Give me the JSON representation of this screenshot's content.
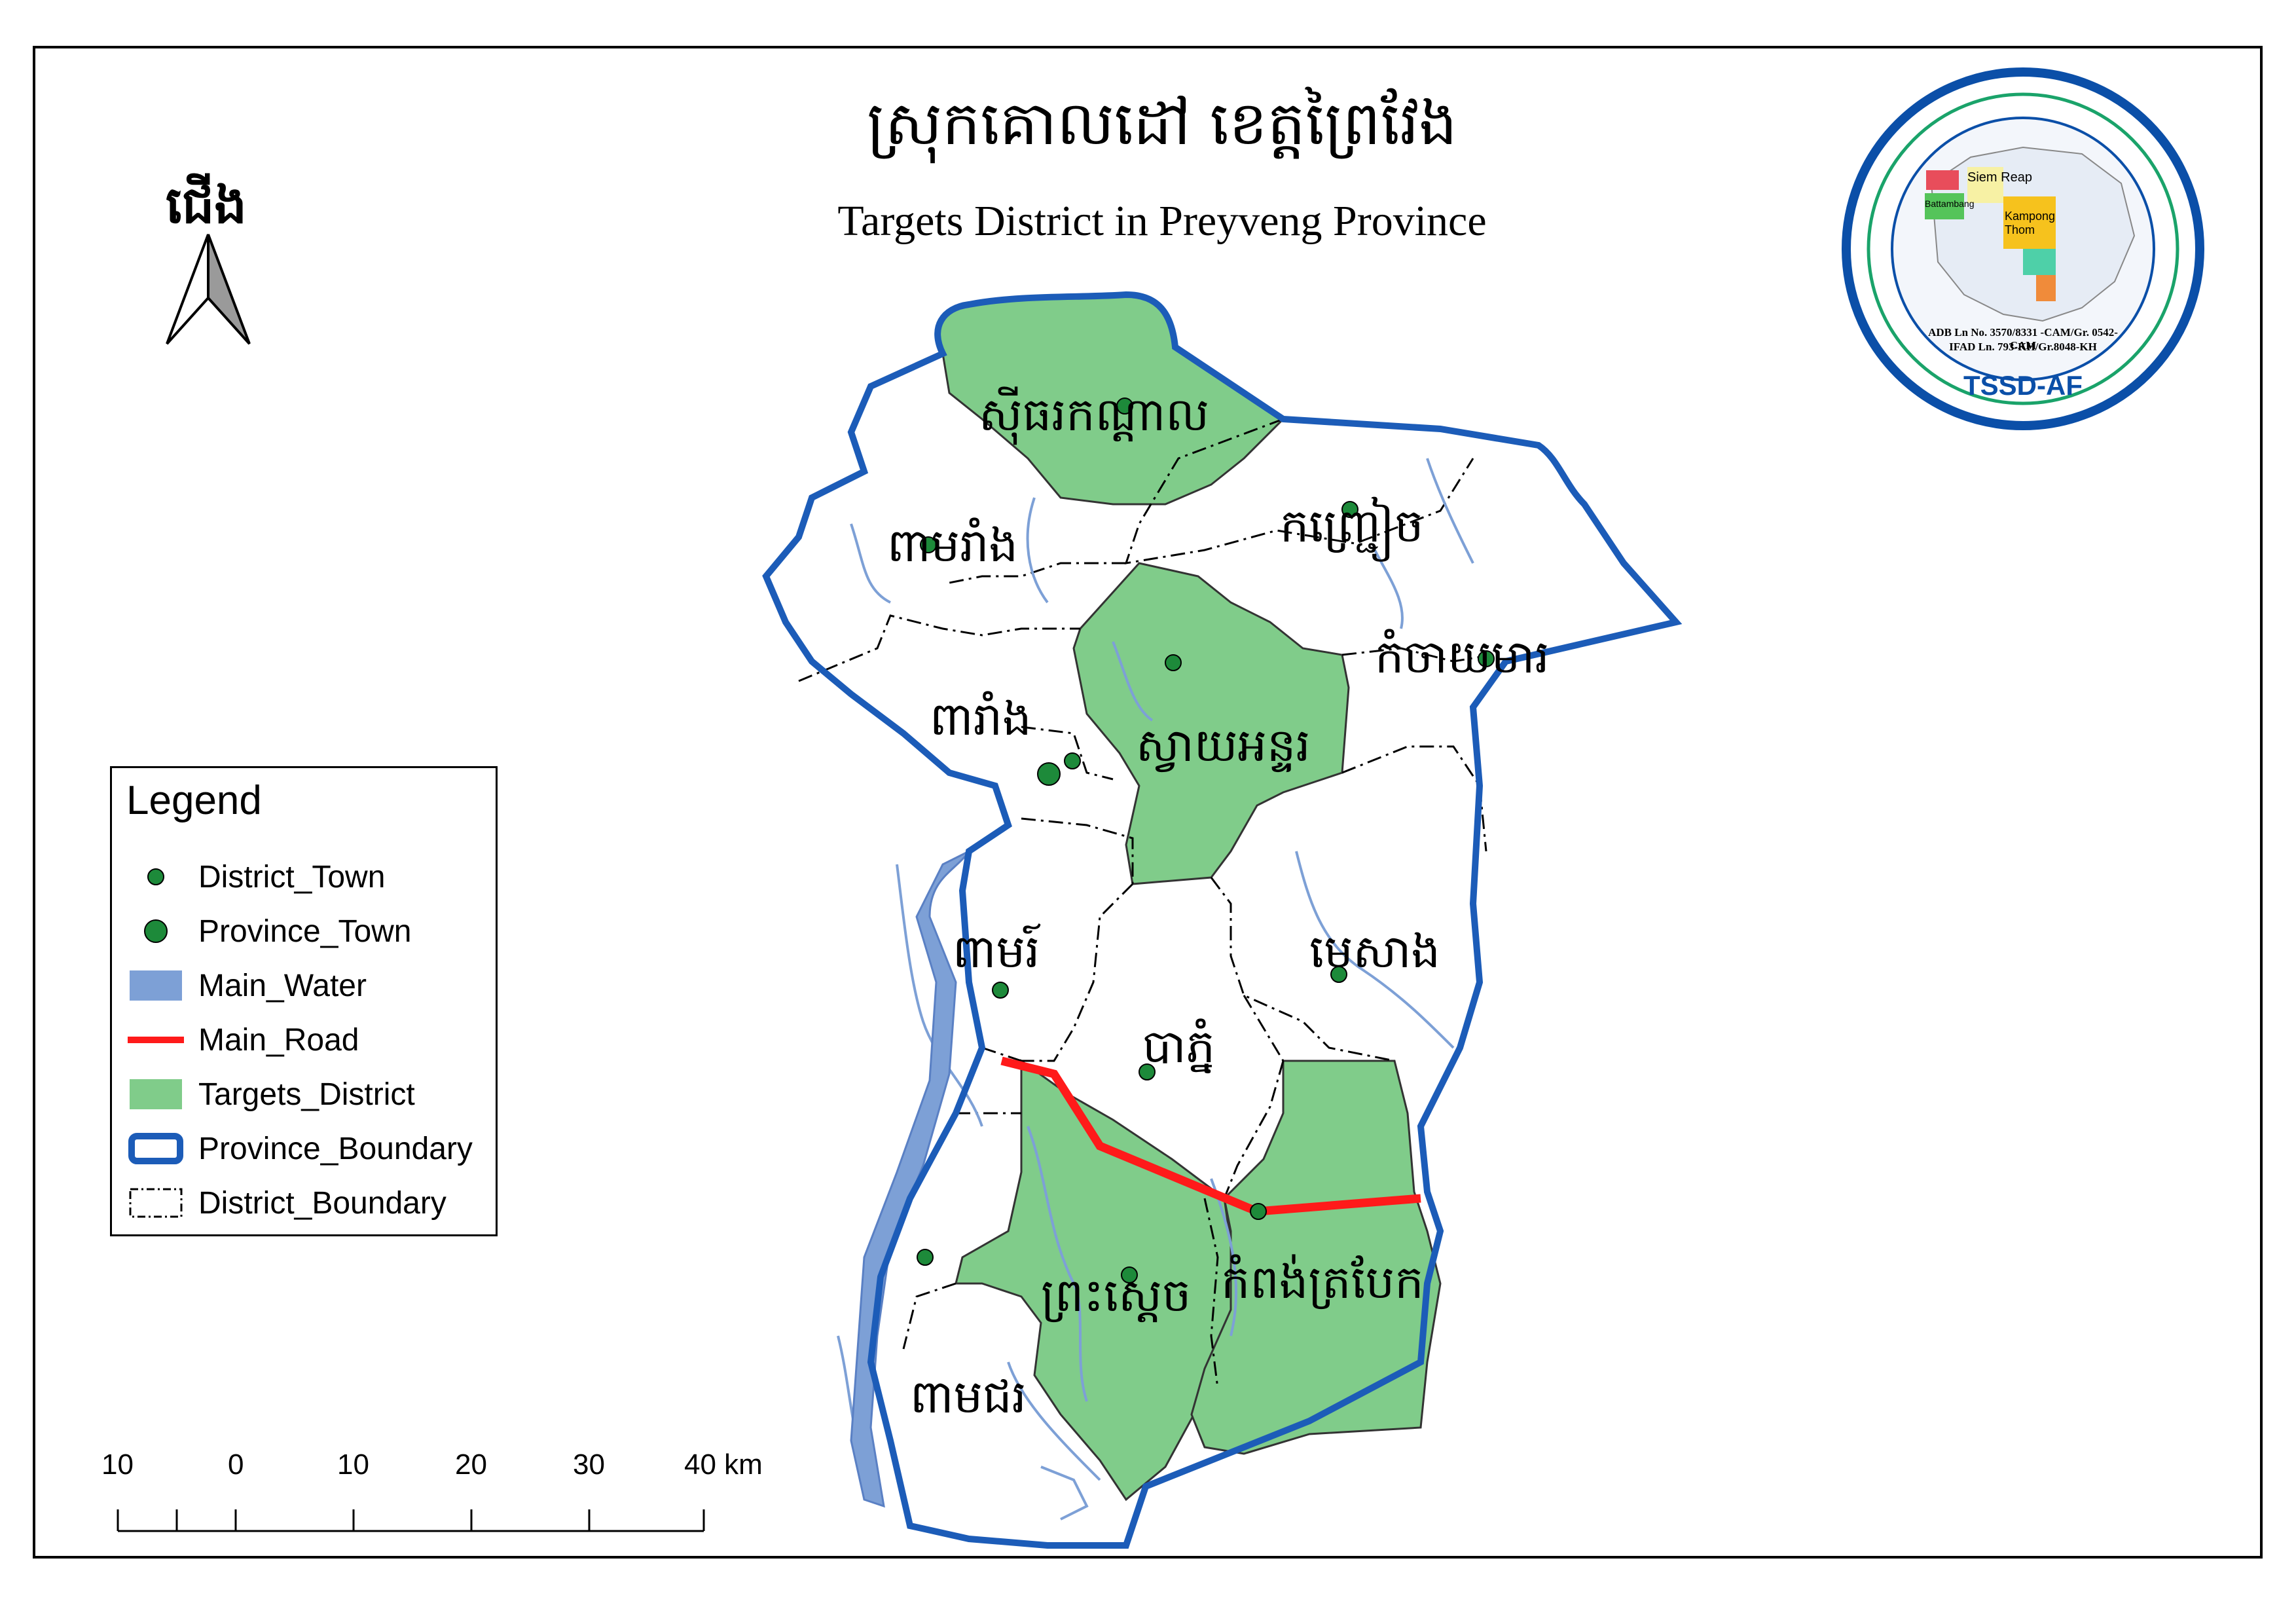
{
  "title": {
    "khmer": "ស្រុកគោលដៅ ខេត្តព្រៃវែង",
    "english": "Targets District in Preyveng Province"
  },
  "north_arrow": {
    "label": "ជើង",
    "icon": "north-arrow-icon"
  },
  "districts": [
    {
      "id": "sithor-kandal",
      "name": "ស៊ីធរកណ្ដាល",
      "target": true
    },
    {
      "id": "kamchay-mear",
      "name": "កំចាយមារ",
      "target": false
    },
    {
      "id": "kanhchriech",
      "name": "កញ្ជ្រៀច",
      "target": false
    },
    {
      "id": "pea-reang",
      "name": "ពាមរាំង",
      "target": false
    },
    {
      "id": "svay-antor",
      "name": "ស្វាយអន្ទរ",
      "target": true
    },
    {
      "id": "peareang",
      "name": "ពារាំង",
      "target": false
    },
    {
      "id": "mesang",
      "name": "មេសាង",
      "target": false
    },
    {
      "id": "pea-ro",
      "name": "ពាមរ៍",
      "target": false
    },
    {
      "id": "ba-phnum",
      "name": "បាភ្នំ",
      "target": false
    },
    {
      "id": "preah-sdach",
      "name": "ព្រះស្ដេច",
      "target": true
    },
    {
      "id": "kampong-trabaek",
      "name": "កំពង់ត្របែក",
      "target": true
    },
    {
      "id": "pea-chor",
      "name": "ពាមជរ",
      "target": false
    }
  ],
  "legend": {
    "title": "Legend",
    "items": [
      {
        "key": "district-town",
        "label": "District_Town"
      },
      {
        "key": "province-town",
        "label": "Province_Town"
      },
      {
        "key": "main-water",
        "label": "Main_Water"
      },
      {
        "key": "main-road",
        "label": "Main_Road"
      },
      {
        "key": "targets-district",
        "label": "Targets_District"
      },
      {
        "key": "province-boundary",
        "label": "Province_Boundary"
      },
      {
        "key": "district-boundary",
        "label": "District_Boundary"
      }
    ]
  },
  "scale_bar": {
    "labels": [
      "10",
      "0",
      "10",
      "20",
      "30",
      "40 km"
    ]
  },
  "logo": {
    "name": "TSSD-AF",
    "line1": "ADB Ln No. 3570/8331 -CAM/Gr. 0542-CAM",
    "line2": "IFAD Ln. 793-KH/Gr.8048-KH",
    "map_labels": [
      "Siem Reap",
      "Kampong Thom",
      "Battambang"
    ]
  },
  "colors": {
    "target_fill": "#80cc8a",
    "province_boundary": "#1c5cb8",
    "water": "#7da0d6",
    "road": "#ff1a1a",
    "town": "#1d8a3a"
  }
}
